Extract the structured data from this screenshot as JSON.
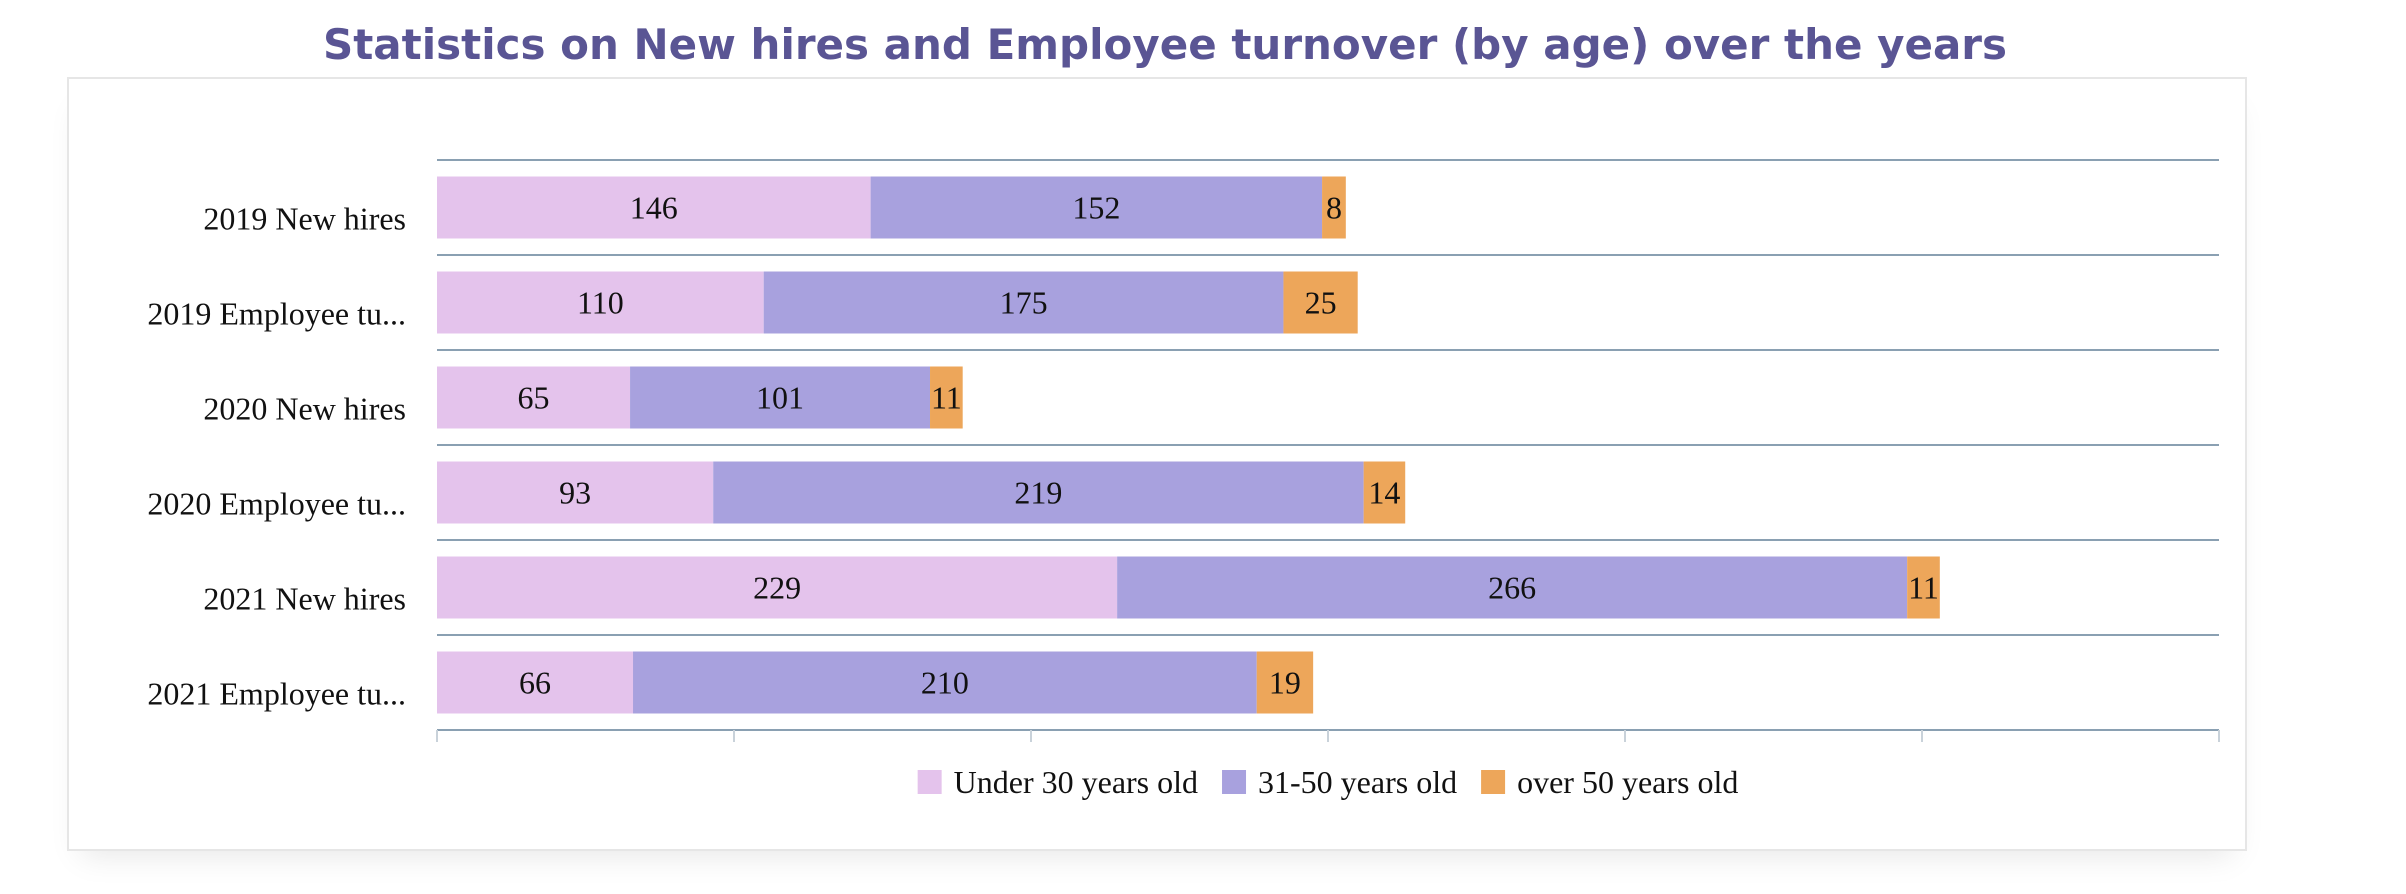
{
  "chart_data": {
    "type": "bar",
    "orientation": "horizontal",
    "stacked": true,
    "title": "Statistics on New hires and Employee turnover (by age) over the years",
    "categories": [
      "2019 New hires",
      "2019 Employee tu...",
      "2020 New hires",
      "2020 Employee tu...",
      "2021 New hires",
      "2021 Employee tu..."
    ],
    "series": [
      {
        "name": "Under 30 years old",
        "color": "#e4c3ec",
        "values": [
          146,
          110,
          65,
          93,
          229,
          66
        ]
      },
      {
        "name": "31-50 years old",
        "color": "#a8a1de",
        "values": [
          152,
          175,
          101,
          219,
          266,
          210
        ]
      },
      {
        "name": "over 50 years old",
        "color": "#eda65a",
        "values": [
          8,
          25,
          11,
          14,
          11,
          19
        ]
      }
    ],
    "xlim": [
      0,
      600
    ],
    "grid": true,
    "legend_position": "bottom"
  }
}
